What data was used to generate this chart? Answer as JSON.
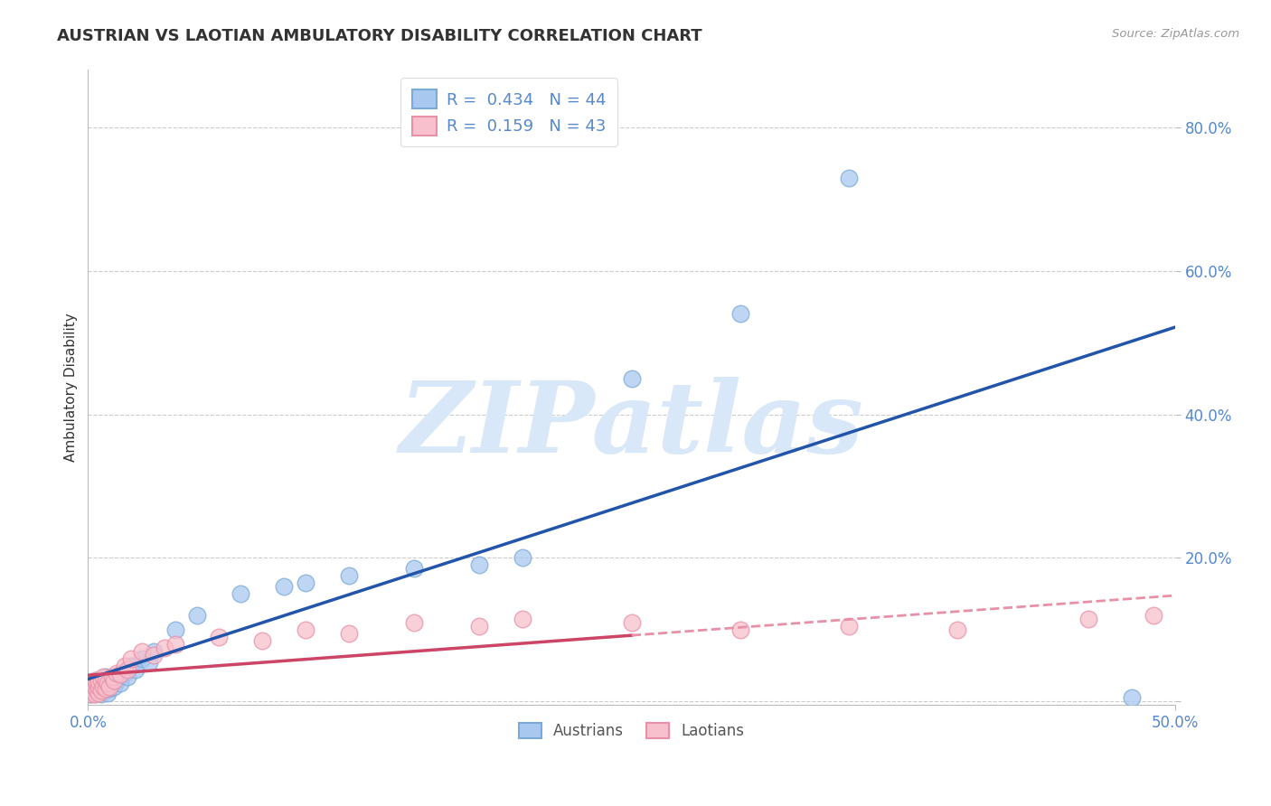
{
  "title": "AUSTRIAN VS LAOTIAN AMBULATORY DISABILITY CORRELATION CHART",
  "source": "Source: ZipAtlas.com",
  "ylabel": "Ambulatory Disability",
  "x_min": 0.0,
  "x_max": 0.5,
  "y_min": -0.005,
  "y_max": 0.88,
  "x_ticks": [
    0.0,
    0.5
  ],
  "x_tick_labels": [
    "0.0%",
    "50.0%"
  ],
  "y_ticks": [
    0.0,
    0.2,
    0.4,
    0.6,
    0.8
  ],
  "y_tick_labels": [
    "",
    "20.0%",
    "40.0%",
    "60.0%",
    "80.0%"
  ],
  "austrian_color_face": "#A8C8F0",
  "austrian_color_edge": "#7AAAD8",
  "laotian_color_face": "#F8C0CC",
  "laotian_color_edge": "#E890A8",
  "austrian_line_color": "#2255AA",
  "laotian_line_color": "#CC4466",
  "laotian_line_color_dash": "#E890A8",
  "R_austrian": 0.434,
  "N_austrian": 44,
  "R_laotian": 0.159,
  "N_laotian": 43,
  "austrian_x": [
    0.001,
    0.002,
    0.002,
    0.003,
    0.003,
    0.003,
    0.004,
    0.004,
    0.004,
    0.005,
    0.005,
    0.005,
    0.006,
    0.006,
    0.007,
    0.007,
    0.008,
    0.008,
    0.009,
    0.01,
    0.011,
    0.012,
    0.013,
    0.015,
    0.017,
    0.018,
    0.02,
    0.022,
    0.025,
    0.028,
    0.03,
    0.04,
    0.05,
    0.07,
    0.09,
    0.1,
    0.12,
    0.15,
    0.18,
    0.2,
    0.25,
    0.3,
    0.35,
    0.48
  ],
  "austrian_y": [
    0.01,
    0.015,
    0.02,
    0.01,
    0.018,
    0.025,
    0.012,
    0.022,
    0.03,
    0.015,
    0.02,
    0.028,
    0.01,
    0.025,
    0.015,
    0.03,
    0.02,
    0.035,
    0.012,
    0.018,
    0.025,
    0.02,
    0.03,
    0.025,
    0.04,
    0.035,
    0.05,
    0.045,
    0.06,
    0.055,
    0.07,
    0.1,
    0.12,
    0.15,
    0.16,
    0.165,
    0.175,
    0.185,
    0.19,
    0.2,
    0.45,
    0.54,
    0.73,
    0.005
  ],
  "laotian_x": [
    0.001,
    0.002,
    0.002,
    0.003,
    0.003,
    0.003,
    0.004,
    0.004,
    0.005,
    0.005,
    0.005,
    0.006,
    0.006,
    0.007,
    0.007,
    0.008,
    0.008,
    0.009,
    0.01,
    0.011,
    0.012,
    0.013,
    0.015,
    0.017,
    0.018,
    0.02,
    0.025,
    0.03,
    0.035,
    0.04,
    0.06,
    0.08,
    0.1,
    0.12,
    0.15,
    0.18,
    0.2,
    0.25,
    0.3,
    0.35,
    0.4,
    0.46,
    0.49
  ],
  "laotian_y": [
    0.01,
    0.018,
    0.025,
    0.01,
    0.02,
    0.03,
    0.015,
    0.025,
    0.012,
    0.02,
    0.028,
    0.015,
    0.03,
    0.02,
    0.035,
    0.018,
    0.03,
    0.025,
    0.02,
    0.035,
    0.03,
    0.04,
    0.038,
    0.05,
    0.045,
    0.06,
    0.07,
    0.065,
    0.075,
    0.08,
    0.09,
    0.085,
    0.1,
    0.095,
    0.11,
    0.105,
    0.115,
    0.11,
    0.1,
    0.105,
    0.1,
    0.115,
    0.12
  ],
  "background_color": "#FFFFFF",
  "grid_color": "#CCCCCC",
  "watermark_text": "ZIPatlas",
  "watermark_color": "#D8E8F8",
  "legend_labels": [
    "Austrians",
    "Laotians"
  ],
  "tick_color": "#5588CC",
  "axis_label_color": "#333333"
}
